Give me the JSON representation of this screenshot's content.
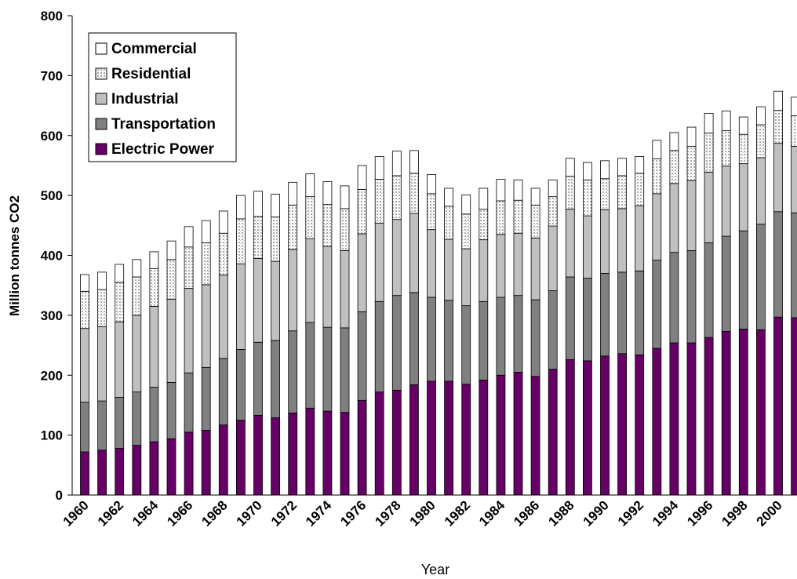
{
  "chart_data": {
    "type": "stacked-bar",
    "y_label": "Million tonnes CO2",
    "x_label": "Year",
    "categories": [
      "1960",
      null,
      "1962",
      null,
      "1964",
      null,
      "1966",
      null,
      "1968",
      null,
      "1970",
      null,
      "1972",
      null,
      "1974",
      null,
      "1976",
      null,
      "1978",
      null,
      "1980",
      null,
      "1982",
      null,
      "1984",
      null,
      "1986",
      null,
      "1988",
      null,
      "1990",
      null,
      "1992",
      null,
      "1994",
      null,
      "1996",
      null,
      "1998",
      null,
      "2000",
      null
    ],
    "series": [
      {
        "name": "Electric Power",
        "color": "#660066",
        "values": [
          72,
          75,
          78,
          83,
          89,
          94,
          105,
          108,
          117,
          125,
          133,
          129,
          137,
          145,
          140,
          138,
          158,
          172,
          175,
          184,
          190,
          190,
          185,
          192,
          200,
          205,
          198,
          210,
          226,
          224,
          232,
          236,
          234,
          245,
          254,
          254,
          263,
          273,
          277,
          276,
          297,
          296
        ]
      },
      {
        "name": "Transportation",
        "color": "#808080",
        "values": [
          83,
          82,
          85,
          89,
          91,
          94,
          99,
          105,
          111,
          118,
          122,
          129,
          137,
          143,
          140,
          141,
          148,
          151,
          158,
          154,
          140,
          135,
          131,
          131,
          130,
          128,
          128,
          131,
          138,
          138,
          138,
          136,
          140,
          147,
          151,
          154,
          158,
          159,
          164,
          176,
          176,
          175
        ]
      },
      {
        "name": "Industrial",
        "color": "#c0c0c0",
        "values": [
          123,
          124,
          126,
          128,
          135,
          139,
          141,
          138,
          139,
          143,
          140,
          132,
          136,
          140,
          135,
          129,
          130,
          131,
          127,
          132,
          113,
          102,
          95,
          103,
          105,
          104,
          103,
          108,
          113,
          104,
          106,
          106,
          109,
          111,
          115,
          117,
          118,
          117,
          112,
          111,
          114,
          111
        ]
      },
      {
        "name": "Residential",
        "color": "#d8d8d8",
        "pattern": "dotted",
        "values": [
          62,
          62,
          66,
          64,
          63,
          66,
          69,
          70,
          70,
          75,
          70,
          74,
          74,
          70,
          70,
          70,
          74,
          73,
          73,
          67,
          60,
          55,
          58,
          51,
          56,
          55,
          55,
          49,
          55,
          60,
          52,
          55,
          54,
          58,
          55,
          57,
          65,
          59,
          49,
          55,
          55,
          51
        ]
      },
      {
        "name": "Commercial",
        "color": "#ffffff",
        "values": [
          28,
          29,
          30,
          29,
          28,
          31,
          34,
          37,
          37,
          39,
          42,
          38,
          38,
          38,
          38,
          38,
          40,
          38,
          41,
          38,
          32,
          30,
          32,
          35,
          36,
          34,
          28,
          28,
          30,
          29,
          30,
          29,
          28,
          31,
          30,
          32,
          33,
          33,
          29,
          30,
          32,
          31
        ]
      }
    ],
    "ylim": [
      0,
      800
    ],
    "yticks": [
      0,
      100,
      200,
      300,
      400,
      500,
      600,
      700,
      800
    ],
    "grid": false,
    "legend": "upper left",
    "legend_order": "reversed"
  }
}
